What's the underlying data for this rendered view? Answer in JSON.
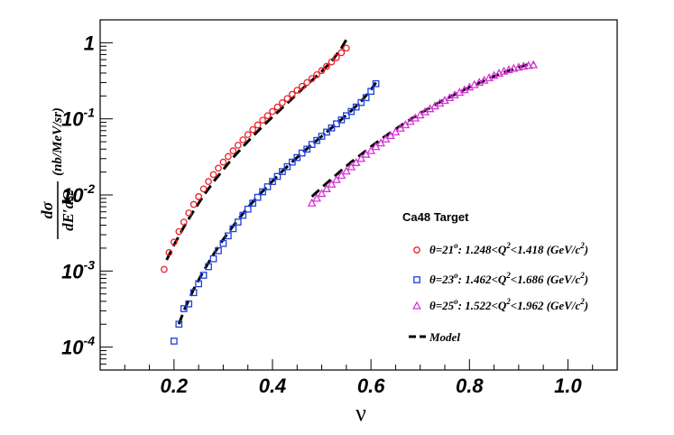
{
  "chart_data": {
    "type": "scatter",
    "y_scale": "log",
    "xlim": [
      0.05,
      1.1
    ],
    "ylim": [
      5e-05,
      2.0
    ],
    "xlabel": "ν",
    "ylabel": "d²σ/dE′dΩ (nb/MeV/sr)",
    "ylabel_parts": {
      "numerator": "dσ",
      "denominator": "dE′dΩ",
      "unit": "(nb/MeV/sr)"
    },
    "x_ticks": [
      "0.2",
      "0.4",
      "0.6",
      "0.8",
      "1.0"
    ],
    "x_tick_values": [
      0.2,
      0.4,
      0.6,
      0.8,
      1.0
    ],
    "y_ticks": [
      {
        "value": 1,
        "base": "1",
        "exp": ""
      },
      {
        "value": 0.1,
        "base": "10",
        "exp": "-1"
      },
      {
        "value": 0.01,
        "base": "10",
        "exp": "-2"
      },
      {
        "value": 0.001,
        "base": "10",
        "exp": "-3"
      },
      {
        "value": 0.0001,
        "base": "10",
        "exp": "-4"
      }
    ],
    "legend": {
      "title": "Ca48 Target",
      "placement": "right"
    },
    "series": [
      {
        "name": "θ=21°: 1.248<Q²<1.418 (GeV/c²)",
        "name_parts": {
          "theta": "θ=21",
          "range": ": 1.248<Q",
          "range2": "<1.418 (GeV/c",
          "tail": ")"
        },
        "marker": "circle",
        "color": "#e8222a",
        "x": [
          0.18,
          0.19,
          0.2,
          0.21,
          0.22,
          0.23,
          0.24,
          0.25,
          0.26,
          0.27,
          0.28,
          0.29,
          0.3,
          0.31,
          0.32,
          0.33,
          0.34,
          0.35,
          0.36,
          0.37,
          0.38,
          0.39,
          0.4,
          0.41,
          0.42,
          0.43,
          0.44,
          0.45,
          0.46,
          0.47,
          0.48,
          0.49,
          0.5,
          0.51,
          0.52,
          0.53,
          0.54,
          0.55
        ],
        "y": [
          0.00105,
          0.00175,
          0.0024,
          0.0033,
          0.0044,
          0.0058,
          0.0075,
          0.0095,
          0.012,
          0.015,
          0.0185,
          0.0225,
          0.027,
          0.032,
          0.038,
          0.045,
          0.053,
          0.062,
          0.072,
          0.083,
          0.096,
          0.11,
          0.125,
          0.143,
          0.163,
          0.185,
          0.21,
          0.237,
          0.267,
          0.3,
          0.338,
          0.38,
          0.43,
          0.49,
          0.56,
          0.64,
          0.74,
          0.85
        ]
      },
      {
        "name": "θ=23°: 1.462<Q²<1.686 (GeV/c²)",
        "name_parts": {
          "theta": "θ=23",
          "range": ": 1.462<Q",
          "range2": "<1.686 (GeV/c",
          "tail": ")"
        },
        "marker": "square",
        "color": "#1f3fd6",
        "x": [
          0.2,
          0.21,
          0.22,
          0.23,
          0.24,
          0.25,
          0.26,
          0.27,
          0.28,
          0.29,
          0.3,
          0.31,
          0.32,
          0.33,
          0.34,
          0.35,
          0.36,
          0.37,
          0.38,
          0.39,
          0.4,
          0.41,
          0.42,
          0.43,
          0.44,
          0.45,
          0.46,
          0.47,
          0.48,
          0.49,
          0.5,
          0.51,
          0.52,
          0.53,
          0.54,
          0.55,
          0.56,
          0.57,
          0.58,
          0.59,
          0.6,
          0.61
        ],
        "y": [
          0.00012,
          0.0002,
          0.00032,
          0.00037,
          0.00052,
          0.00068,
          0.00088,
          0.00114,
          0.00145,
          0.00185,
          0.0023,
          0.0029,
          0.0036,
          0.0044,
          0.0054,
          0.0065,
          0.0078,
          0.0093,
          0.011,
          0.0128,
          0.015,
          0.0175,
          0.0203,
          0.0235,
          0.027,
          0.031,
          0.0355,
          0.04,
          0.046,
          0.052,
          0.059,
          0.067,
          0.076,
          0.086,
          0.097,
          0.11,
          0.125,
          0.143,
          0.164,
          0.19,
          0.23,
          0.29
        ]
      },
      {
        "name": "θ=25°: 1.522<Q²<1.962 (GeV/c²)",
        "name_parts": {
          "theta": "θ=25",
          "range": ": 1.522<Q",
          "range2": "<1.962 (GeV/c",
          "tail": ")"
        },
        "marker": "triangle",
        "color": "#d633d6",
        "x": [
          0.48,
          0.49,
          0.5,
          0.51,
          0.52,
          0.53,
          0.54,
          0.55,
          0.56,
          0.57,
          0.58,
          0.59,
          0.6,
          0.61,
          0.62,
          0.63,
          0.64,
          0.65,
          0.66,
          0.67,
          0.68,
          0.69,
          0.7,
          0.71,
          0.72,
          0.73,
          0.74,
          0.75,
          0.76,
          0.77,
          0.78,
          0.79,
          0.8,
          0.81,
          0.82,
          0.83,
          0.84,
          0.85,
          0.86,
          0.87,
          0.88,
          0.89,
          0.9,
          0.91,
          0.92,
          0.93
        ],
        "y": [
          0.0078,
          0.009,
          0.0104,
          0.012,
          0.0138,
          0.0158,
          0.018,
          0.0205,
          0.0233,
          0.0265,
          0.03,
          0.034,
          0.038,
          0.043,
          0.048,
          0.054,
          0.06,
          0.067,
          0.075,
          0.083,
          0.092,
          0.102,
          0.112,
          0.123,
          0.135,
          0.147,
          0.16,
          0.174,
          0.189,
          0.205,
          0.222,
          0.24,
          0.26,
          0.28,
          0.3,
          0.32,
          0.345,
          0.37,
          0.395,
          0.42,
          0.44,
          0.46,
          0.475,
          0.49,
          0.5,
          0.51
        ]
      }
    ],
    "model": {
      "name": "Model",
      "color": "#000000",
      "curves": [
        {
          "x": [
            0.185,
            0.2,
            0.22,
            0.24,
            0.26,
            0.28,
            0.3,
            0.32,
            0.34,
            0.36,
            0.38,
            0.4,
            0.42,
            0.44,
            0.46,
            0.48,
            0.5,
            0.52,
            0.54,
            0.55
          ],
          "y": [
            0.0014,
            0.0022,
            0.0038,
            0.0062,
            0.0098,
            0.0148,
            0.0215,
            0.031,
            0.043,
            0.059,
            0.08,
            0.106,
            0.14,
            0.185,
            0.245,
            0.32,
            0.42,
            0.57,
            0.85,
            1.1
          ]
        },
        {
          "x": [
            0.21,
            0.22,
            0.24,
            0.26,
            0.28,
            0.3,
            0.32,
            0.34,
            0.36,
            0.38,
            0.4,
            0.42,
            0.44,
            0.46,
            0.48,
            0.5,
            0.52,
            0.54,
            0.56,
            0.58,
            0.6,
            0.61
          ],
          "y": [
            0.0002,
            0.0003,
            0.00058,
            0.001,
            0.00165,
            0.0026,
            0.0039,
            0.0057,
            0.0081,
            0.0112,
            0.0152,
            0.0205,
            0.0272,
            0.0355,
            0.046,
            0.059,
            0.076,
            0.098,
            0.128,
            0.17,
            0.24,
            0.3
          ]
        },
        {
          "x": [
            0.48,
            0.5,
            0.52,
            0.54,
            0.56,
            0.58,
            0.6,
            0.62,
            0.64,
            0.66,
            0.68,
            0.7,
            0.72,
            0.74,
            0.76,
            0.78,
            0.8,
            0.82,
            0.84,
            0.86,
            0.88,
            0.9,
            0.92,
            0.93
          ],
          "y": [
            0.0095,
            0.0125,
            0.0162,
            0.021,
            0.027,
            0.034,
            0.043,
            0.054,
            0.066,
            0.081,
            0.098,
            0.118,
            0.14,
            0.166,
            0.194,
            0.226,
            0.26,
            0.298,
            0.34,
            0.385,
            0.43,
            0.475,
            0.52,
            0.55
          ]
        }
      ]
    }
  }
}
